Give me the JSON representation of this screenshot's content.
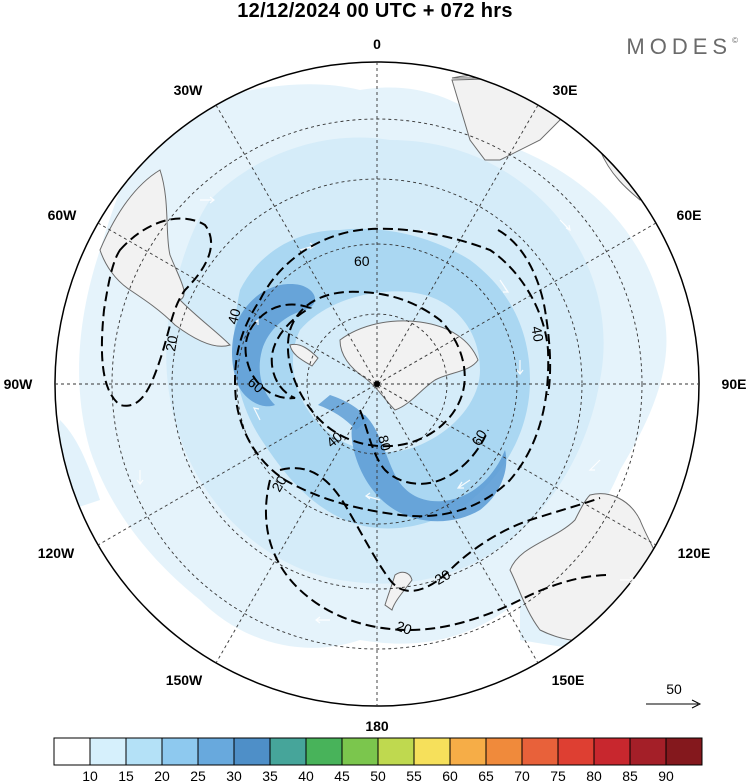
{
  "header": {
    "title": "12/12/2024  00 UTC  + 072 hrs",
    "logo_text": "MODES",
    "logo_mark": "©"
  },
  "map": {
    "projection": "polar-stereographic-south",
    "center_marker": "south-pole-dot",
    "longitude_labels": {
      "lon_0": "0",
      "lon_30e": "30E",
      "lon_60e": "60E",
      "lon_90e": "90E",
      "lon_120e": "120E",
      "lon_150e": "150E",
      "lon_180": "180",
      "lon_150w": "150W",
      "lon_120w": "120W",
      "lon_90w": "90W",
      "lon_60w": "60W",
      "lon_30w": "30W"
    },
    "contour_labels": {
      "c60_top": "60",
      "c40_left": "40",
      "c20_left": "20",
      "c60_left": "60",
      "c40_right": "40",
      "c40_center": "40",
      "c80_center": "80",
      "c60_right": "60",
      "c20_lower_left": "20",
      "c20_lower_right": "20",
      "c20_bottom": "20"
    },
    "vector_reference": {
      "value": "50"
    }
  },
  "colorbar": {
    "ticks": [
      "10",
      "15",
      "20",
      "25",
      "30",
      "35",
      "40",
      "45",
      "50",
      "55",
      "60",
      "65",
      "70",
      "75",
      "80",
      "85",
      "90"
    ],
    "colors": [
      "#ffffff",
      "#d6f0fc",
      "#b4e1f7",
      "#8ec9ef",
      "#68a9dd",
      "#4e8fc8",
      "#46a59a",
      "#48b35a",
      "#7bc64d",
      "#bfd94f",
      "#f6e05b",
      "#f6ad47",
      "#f08a3b",
      "#e8613a",
      "#de3f32",
      "#c8272e",
      "#a41f28",
      "#84181d"
    ]
  },
  "colors": {
    "land": "#f2f2f2",
    "wind_light": "#cfeaf8",
    "wind_mid": "#9fd2f0",
    "wind_strong": "#5f9fd6",
    "contour": "#000000"
  }
}
